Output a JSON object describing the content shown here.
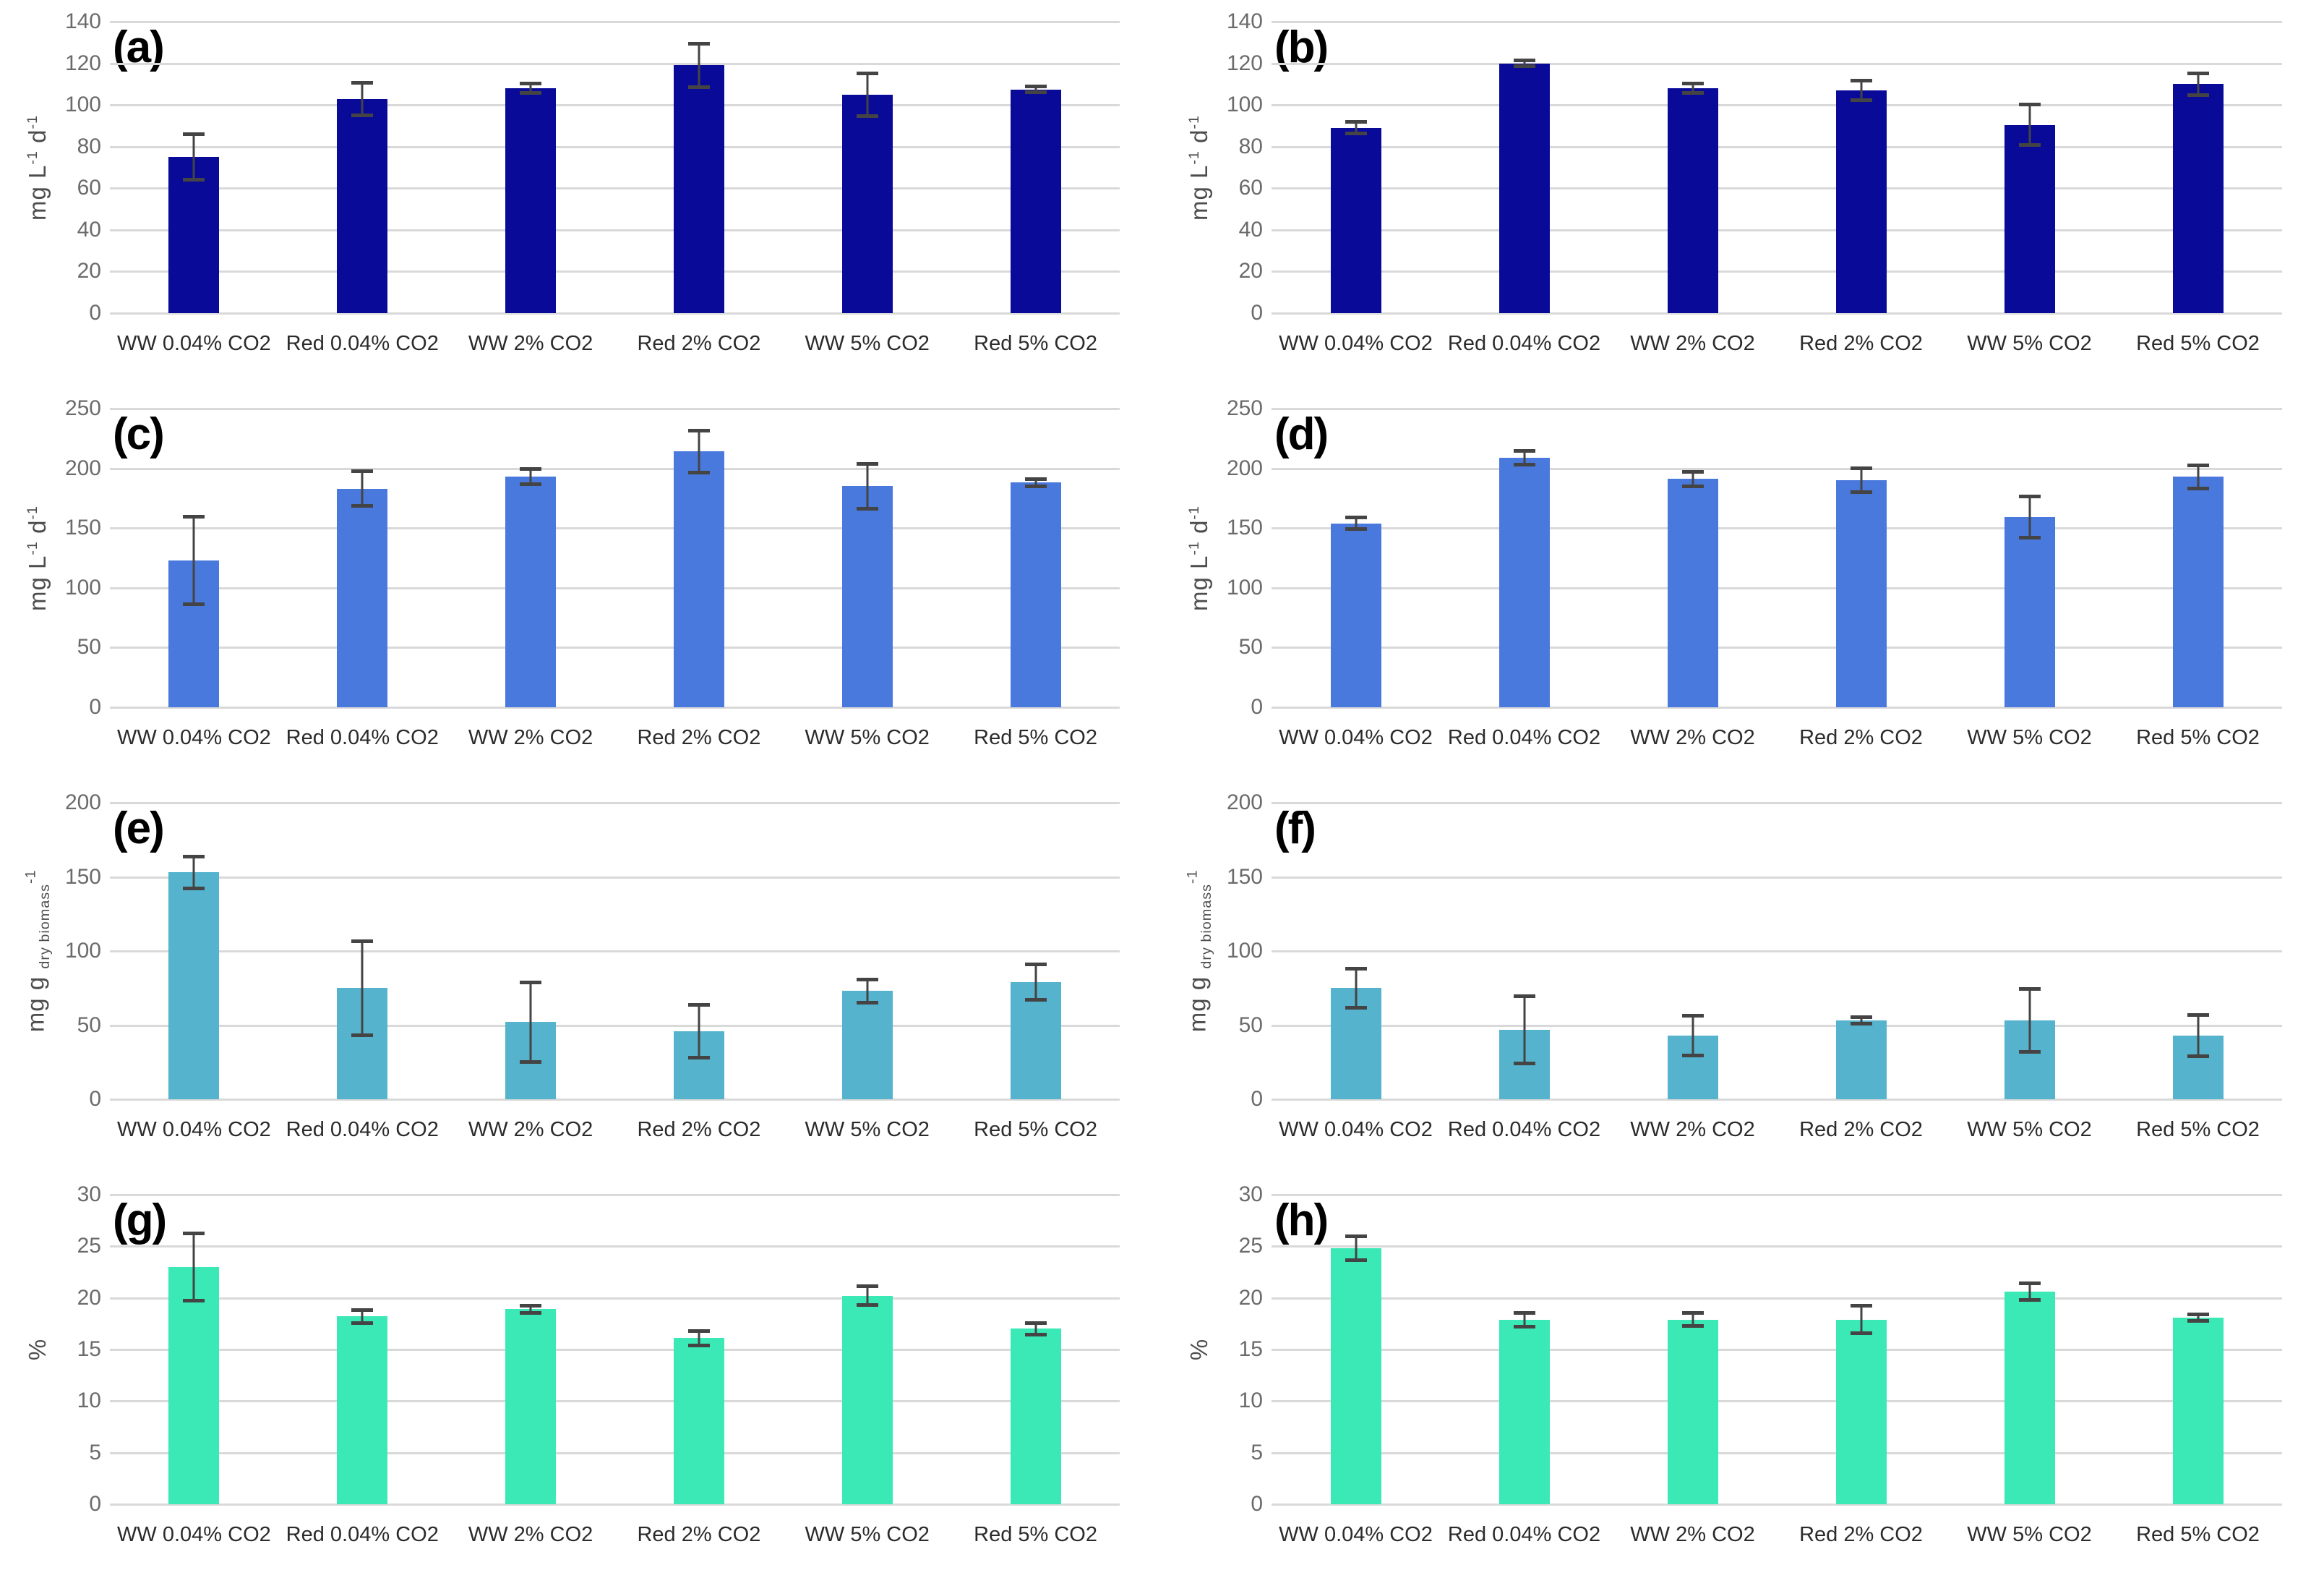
{
  "figure": {
    "background": "#ffffff",
    "gridline_color": "#d9d9d9",
    "error_bar_color": "#444444",
    "panel_letters": [
      "(a)",
      "(b)",
      "(c)",
      "(d)",
      "(e)",
      "(f)",
      "(g)",
      "(h)"
    ]
  },
  "chart_data": [
    {
      "type": "bar",
      "panel_label": "(a)",
      "color": "#0a0a99",
      "ylim": [
        0,
        140
      ],
      "yticks": [
        0,
        20,
        40,
        60,
        80,
        100,
        120,
        140
      ],
      "grid": true,
      "legend": null,
      "ylabel_text": "mg L-1 d-1",
      "ylabel_segments": [
        {
          "t": "mg L"
        },
        {
          "t": "-1",
          "style": "sup"
        },
        {
          "t": " d"
        },
        {
          "t": "-1",
          "style": "sup"
        }
      ],
      "categories": [
        "WW 0.04% CO2",
        "Red 0.04% CO2",
        "WW 2% CO2",
        "Red 2% CO2",
        "WW 5% CO2",
        "Red 5% CO2"
      ],
      "values": [
        75,
        103,
        108,
        119,
        105,
        107.5
      ],
      "errors": [
        11,
        8,
        2.5,
        10.5,
        10.5,
        1.5
      ]
    },
    {
      "type": "bar",
      "panel_label": "(b)",
      "color": "#0a0a99",
      "ylim": [
        0,
        140
      ],
      "yticks": [
        0,
        20,
        40,
        60,
        80,
        100,
        120,
        140
      ],
      "grid": true,
      "legend": null,
      "ylabel_text": "mg L-1 d-1",
      "ylabel_segments": [
        {
          "t": "mg L"
        },
        {
          "t": "-1",
          "style": "sup"
        },
        {
          "t": " d"
        },
        {
          "t": "-1",
          "style": "sup"
        }
      ],
      "categories": [
        "WW 0.04% CO2",
        "Red 0.04% CO2",
        "WW 2% CO2",
        "Red 2% CO2",
        "WW 5% CO2",
        "Red 5% CO2"
      ],
      "values": [
        89,
        120,
        108,
        107,
        90.5,
        110
      ],
      "errors": [
        3,
        1.5,
        2.5,
        5,
        10,
        5.5
      ]
    },
    {
      "type": "bar",
      "panel_label": "(c)",
      "color": "#4a79dd",
      "ylim": [
        0,
        250
      ],
      "yticks": [
        0,
        50,
        100,
        150,
        200,
        250
      ],
      "grid": true,
      "legend": null,
      "ylabel_text": "mg L-1 d-1",
      "ylabel_segments": [
        {
          "t": "mg L"
        },
        {
          "t": "-1",
          "style": "sup"
        },
        {
          "t": " d"
        },
        {
          "t": "-1",
          "style": "sup"
        }
      ],
      "categories": [
        "WW 0.04% CO2",
        "Red 0.04% CO2",
        "WW 2% CO2",
        "Red 2% CO2",
        "WW 5% CO2",
        "Red 5% CO2"
      ],
      "values": [
        123,
        183,
        193,
        214,
        185,
        188
      ],
      "errors": [
        37,
        15,
        6.5,
        18,
        19,
        3.5
      ]
    },
    {
      "type": "bar",
      "panel_label": "(d)",
      "color": "#4a79dd",
      "ylim": [
        0,
        250
      ],
      "yticks": [
        0,
        50,
        100,
        150,
        200,
        250
      ],
      "grid": true,
      "legend": null,
      "ylabel_text": "mg L-1 d-1",
      "ylabel_segments": [
        {
          "t": "mg L"
        },
        {
          "t": "-1",
          "style": "sup"
        },
        {
          "t": " d"
        },
        {
          "t": "-1",
          "style": "sup"
        }
      ],
      "categories": [
        "WW 0.04% CO2",
        "Red 0.04% CO2",
        "WW 2% CO2",
        "Red 2% CO2",
        "WW 5% CO2",
        "Red 5% CO2"
      ],
      "values": [
        154,
        209,
        191,
        190,
        159,
        193
      ],
      "errors": [
        5,
        6,
        6.5,
        10.5,
        17.5,
        10
      ]
    },
    {
      "type": "bar",
      "panel_label": "(e)",
      "color": "#55b3cd",
      "ylim": [
        0,
        200
      ],
      "yticks": [
        0,
        50,
        100,
        150,
        200
      ],
      "grid": true,
      "legend": null,
      "ylabel_text": "mg g dry biomass-1",
      "ylabel_segments": [
        {
          "t": "mg g "
        },
        {
          "t": "dry biomass",
          "style": "sub"
        },
        {
          "t": "-1",
          "style": "sup"
        }
      ],
      "categories": [
        "WW 0.04% CO2",
        "Red 0.04% CO2",
        "WW 2% CO2",
        "Red 2% CO2",
        "WW 5% CO2",
        "Red 5% CO2"
      ],
      "values": [
        153,
        75,
        52,
        46,
        73,
        79
      ],
      "errors": [
        11,
        32,
        27,
        18,
        8,
        12
      ]
    },
    {
      "type": "bar",
      "panel_label": "(f)",
      "color": "#55b3cd",
      "ylim": [
        0,
        200
      ],
      "yticks": [
        0,
        50,
        100,
        150,
        200
      ],
      "grid": true,
      "legend": null,
      "ylabel_text": "mg g dry biomass-1",
      "ylabel_segments": [
        {
          "t": "mg g "
        },
        {
          "t": "dry biomass",
          "style": "sub"
        },
        {
          "t": "-1",
          "style": "sup"
        }
      ],
      "categories": [
        "WW 0.04% CO2",
        "Red 0.04% CO2",
        "WW 2% CO2",
        "Red 2% CO2",
        "WW 5% CO2",
        "Red 5% CO2"
      ],
      "values": [
        75,
        47,
        43,
        53,
        53,
        43
      ],
      "errors": [
        13.5,
        23,
        13.5,
        2.5,
        21.5,
        14
      ]
    },
    {
      "type": "bar",
      "panel_label": "(g)",
      "color": "#3ae9b6",
      "ylim": [
        0,
        30
      ],
      "yticks": [
        0,
        5,
        10,
        15,
        20,
        25,
        30
      ],
      "grid": true,
      "legend": null,
      "ylabel_text": "%",
      "ylabel_segments": [
        {
          "t": "%"
        }
      ],
      "categories": [
        "WW 0.04% CO2",
        "Red 0.04% CO2",
        "WW 2% CO2",
        "Red 2% CO2",
        "WW 5% CO2",
        "Red 5% CO2"
      ],
      "values": [
        23,
        18.2,
        18.9,
        16.1,
        20.2,
        17
      ],
      "errors": [
        3.3,
        0.65,
        0.4,
        0.75,
        0.95,
        0.6
      ]
    },
    {
      "type": "bar",
      "panel_label": "(h)",
      "color": "#3ae9b6",
      "ylim": [
        0,
        30
      ],
      "yticks": [
        0,
        5,
        10,
        15,
        20,
        25,
        30
      ],
      "grid": true,
      "legend": null,
      "ylabel_text": "%",
      "ylabel_segments": [
        {
          "t": "%"
        }
      ],
      "categories": [
        "WW 0.04% CO2",
        "Red 0.04% CO2",
        "WW 2% CO2",
        "Red 2% CO2",
        "WW 5% CO2",
        "Red 5% CO2"
      ],
      "values": [
        24.8,
        17.9,
        17.9,
        17.9,
        20.6,
        18.1
      ],
      "errors": [
        1.2,
        0.7,
        0.65,
        1.35,
        0.85,
        0.35
      ]
    }
  ]
}
